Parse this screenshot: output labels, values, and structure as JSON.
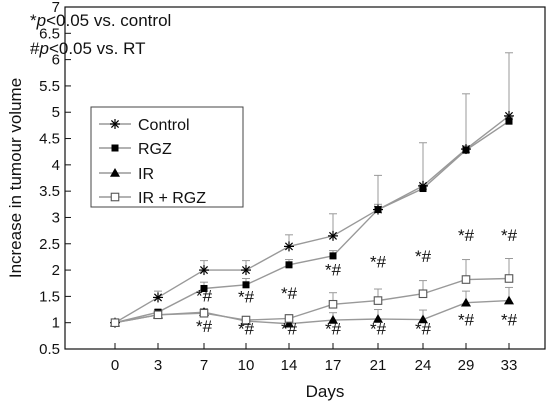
{
  "notes": {
    "line1_prefix": "*",
    "line1_italic": "p",
    "line1_suffix": "<0.05 vs. control",
    "line2_prefix": "#",
    "line2_italic": "p",
    "line2_suffix": "<0.05 vs. RT"
  },
  "chart_data": {
    "type": "line",
    "xlabel": "Days",
    "ylabel": "Increase in tumour volume",
    "x": [
      "0",
      "3",
      "7",
      "10",
      "14",
      "17",
      "21",
      "24",
      "29",
      "33"
    ],
    "ylim": [
      0.5,
      7
    ],
    "yticks": [
      "0.5",
      "1",
      "1.5",
      "2",
      "2.5",
      "3",
      "3.5",
      "4",
      "4.5",
      "5",
      "5.5",
      "6",
      "6.5",
      "7"
    ],
    "grid": false,
    "legend_position": "middle-left",
    "series": [
      {
        "name": "Control",
        "marker": "asterisk",
        "values": [
          1.0,
          1.48,
          2.0,
          2.0,
          2.45,
          2.65,
          3.15,
          3.6,
          4.3,
          4.93
        ],
        "errors": [
          0.0,
          0.12,
          0.18,
          0.18,
          0.22,
          0.42,
          0.65,
          0.82,
          1.05,
          1.2
        ]
      },
      {
        "name": "RGZ",
        "marker": "square-filled",
        "values": [
          1.0,
          1.2,
          1.65,
          1.72,
          2.1,
          2.27,
          3.15,
          3.55,
          4.28,
          4.83
        ],
        "errors": [
          0.0,
          0.05,
          0.12,
          0.12,
          0.1,
          0.1,
          0.1,
          0.08,
          0.08,
          0.08
        ]
      },
      {
        "name": "IR",
        "marker": "triangle-filled",
        "values": [
          1.0,
          1.15,
          1.2,
          1.03,
          0.98,
          1.05,
          1.07,
          1.06,
          1.38,
          1.42
        ],
        "errors": [
          0.0,
          0.05,
          0.07,
          0.07,
          0.06,
          0.14,
          0.18,
          0.18,
          0.22,
          0.25
        ]
      },
      {
        "name": "IR + RGZ",
        "marker": "square-open",
        "values": [
          1.0,
          1.15,
          1.18,
          1.05,
          1.08,
          1.35,
          1.42,
          1.55,
          1.82,
          1.84
        ],
        "errors": [
          0.0,
          0.05,
          0.07,
          0.07,
          0.07,
          0.22,
          0.22,
          0.25,
          0.38,
          0.38
        ]
      }
    ],
    "annotations": [
      {
        "text": "*#",
        "x": "7",
        "y": 1.4
      },
      {
        "text": "*#",
        "x": "7",
        "y": 0.82
      },
      {
        "text": "*#",
        "x": "10",
        "y": 1.38
      },
      {
        "text": "*#",
        "x": "10",
        "y": 0.78
      },
      {
        "text": "*#",
        "x": "14",
        "y": 1.45
      },
      {
        "text": "*#",
        "x": "14",
        "y": 0.78
      },
      {
        "text": "*#",
        "x": "17",
        "y": 1.9
      },
      {
        "text": "*#",
        "x": "17",
        "y": 0.78
      },
      {
        "text": "*#",
        "x": "21",
        "y": 2.05
      },
      {
        "text": "*#",
        "x": "21",
        "y": 0.78
      },
      {
        "text": "*#",
        "x": "24",
        "y": 2.15
      },
      {
        "text": "*#",
        "x": "24",
        "y": 0.78
      },
      {
        "text": "*#",
        "x": "29",
        "y": 2.55
      },
      {
        "text": "*#",
        "x": "29",
        "y": 0.95
      },
      {
        "text": "*#",
        "x": "33",
        "y": 2.55
      },
      {
        "text": "*#",
        "x": "33",
        "y": 0.95
      }
    ],
    "colors": {
      "line": "#999999",
      "marker": "#000000",
      "error_bar": "#999999"
    }
  }
}
